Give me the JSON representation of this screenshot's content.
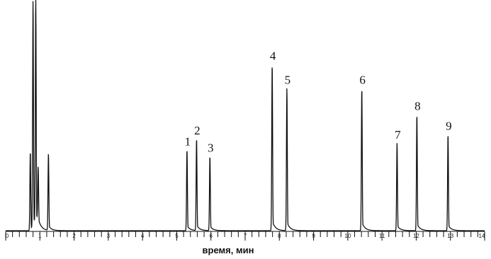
{
  "chart_data": {
    "type": "line",
    "title": "",
    "xlabel": "время, мин",
    "ylabel": "",
    "xlim": [
      0,
      14
    ],
    "xticks": [
      "0",
      "1",
      "2",
      "3",
      "4",
      "5",
      "6",
      "7",
      "8",
      "9",
      "10",
      "11",
      "12",
      "13",
      "14"
    ],
    "grid": false,
    "legend": "none",
    "line_color": "#111111",
    "baseline_level": 0.0,
    "solvent_peaks": [
      {
        "x": 0.72,
        "height": 0.36
      },
      {
        "x": 0.8,
        "height": 1.04
      },
      {
        "x": 0.88,
        "height": 1.04
      },
      {
        "x": 0.95,
        "height": 0.25
      },
      {
        "x": 1.25,
        "height": 0.35
      }
    ],
    "peaks": [
      {
        "label": "1",
        "x": 5.3,
        "height": 0.37
      },
      {
        "label": "2",
        "x": 5.58,
        "height": 0.42
      },
      {
        "label": "3",
        "x": 5.97,
        "height": 0.34
      },
      {
        "label": "4",
        "x": 7.79,
        "height": 0.76
      },
      {
        "label": "5",
        "x": 8.22,
        "height": 0.65
      },
      {
        "label": "6",
        "x": 10.41,
        "height": 0.65
      },
      {
        "label": "7",
        "x": 11.44,
        "height": 0.4
      },
      {
        "label": "8",
        "x": 12.02,
        "height": 0.53
      },
      {
        "label": "9",
        "x": 12.93,
        "height": 0.44
      }
    ]
  }
}
